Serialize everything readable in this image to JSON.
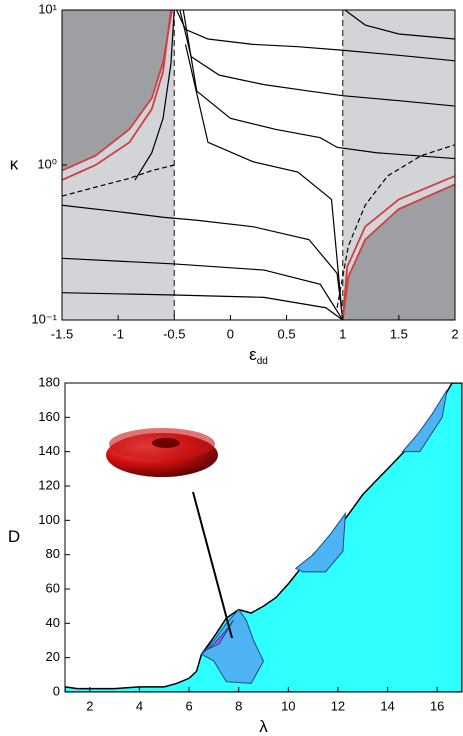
{
  "chart_data": [
    {
      "type": "line",
      "ylog": true,
      "xlabel": "ε",
      "xlabel_sub": "dd",
      "ylabel": "κ",
      "xlim": [
        -1.5,
        2
      ],
      "ylim": [
        0.1,
        10
      ],
      "xticks": [
        -1.5,
        -1,
        -0.5,
        0,
        0.5,
        1,
        1.5,
        2
      ],
      "yticks": [
        {
          "value": 0.1,
          "label": "10⁻¹"
        },
        {
          "value": 1,
          "label": "10⁰"
        },
        {
          "value": 10,
          "label": "10¹"
        }
      ],
      "vlines": [
        -0.5,
        1
      ],
      "shade_color": "#d3d4d8",
      "dark_color": "#9e9fa3",
      "series": [
        {
          "color": "#9e9fa3",
          "fill_to": "top",
          "x": [
            -1.5,
            -1.2,
            -0.9,
            -0.7,
            -0.6,
            -0.52
          ],
          "values": [
            0.92,
            1.15,
            1.7,
            2.7,
            4.6,
            10
          ]
        },
        {
          "color": "#9e9fa3",
          "fill_to": "bottom",
          "x": [
            1.0,
            1.05,
            1.2,
            1.5,
            2
          ],
          "values": [
            0.1,
            0.19,
            0.33,
            0.52,
            0.75
          ]
        },
        {
          "color": "#000000",
          "dash": true,
          "x": [
            -1.5,
            -1.2,
            -0.9,
            -0.7,
            -0.5
          ],
          "values": [
            0.63,
            0.72,
            0.82,
            0.92,
            1.0
          ]
        },
        {
          "color": "#000000",
          "dash": true,
          "x": [
            0.95,
            1.05,
            1.2,
            1.4,
            1.7,
            2
          ],
          "values": [
            0.12,
            0.3,
            0.55,
            0.85,
            1.15,
            1.35
          ]
        },
        {
          "color": "#000000",
          "x": [
            -0.48,
            -0.4,
            -0.2,
            0.2,
            0.6,
            1,
            1.5,
            2
          ],
          "values": [
            10,
            7.5,
            6.5,
            6,
            5.8,
            5.5,
            5.1,
            4.7
          ]
        },
        {
          "color": "#000000",
          "x": [
            -0.45,
            -0.35,
            -0.1,
            0.3,
            0.7,
            1,
            1.5,
            2
          ],
          "values": [
            10,
            5,
            3.8,
            3.3,
            3,
            2.8,
            2.6,
            2.4
          ]
        },
        {
          "color": "#000000",
          "x": [
            -0.42,
            -0.3,
            0,
            0.4,
            0.8,
            0.95,
            1.3,
            2
          ],
          "values": [
            10,
            3,
            2,
            1.7,
            1.5,
            1.3,
            1.2,
            1.1
          ]
        },
        {
          "color": "#000000",
          "x": [
            -0.4,
            -0.2,
            0.2,
            0.6,
            0.9,
            0.99
          ],
          "values": [
            6,
            1.4,
            1.05,
            0.9,
            0.6,
            0.12
          ]
        },
        {
          "color": "#000000",
          "x": [
            -1.5,
            -1,
            -0.6,
            -0.3,
            0.2,
            0.7,
            0.95,
            1
          ],
          "values": [
            0.55,
            0.5,
            0.46,
            0.44,
            0.4,
            0.33,
            0.2,
            0.1
          ]
        },
        {
          "color": "#000000",
          "x": [
            -1.5,
            -0.5,
            0.3,
            0.8,
            1
          ],
          "values": [
            0.25,
            0.23,
            0.21,
            0.17,
            0.1
          ]
        },
        {
          "color": "#000000",
          "x": [
            -1.5,
            -0.5,
            0.3,
            0.85,
            1
          ],
          "values": [
            0.15,
            0.145,
            0.14,
            0.12,
            0.1
          ]
        },
        {
          "color": "#000000",
          "x": [
            -0.85,
            -0.7,
            -0.6,
            -0.53,
            -0.5
          ],
          "values": [
            0.8,
            1.2,
            2,
            4.5,
            10
          ]
        },
        {
          "color": "#000000",
          "x": [
            1.02,
            1.2,
            1.5,
            2
          ],
          "values": [
            10,
            8,
            7,
            6.5
          ]
        },
        {
          "color": "#d04040",
          "x": [
            -1.5,
            -1.2,
            -0.9,
            -0.7,
            -0.6,
            -0.52
          ],
          "values": [
            0.92,
            1.15,
            1.7,
            2.7,
            4.6,
            10
          ]
        },
        {
          "color": "#d04040",
          "x": [
            -1.5,
            -1.2,
            -0.9,
            -0.7,
            -0.6,
            -0.53
          ],
          "values": [
            0.8,
            1.0,
            1.4,
            2.3,
            4,
            10
          ]
        },
        {
          "color": "#d04040",
          "x": [
            1.0,
            1.05,
            1.2,
            1.5,
            2
          ],
          "values": [
            0.1,
            0.19,
            0.33,
            0.52,
            0.75
          ]
        },
        {
          "color": "#d04040",
          "x": [
            1.0,
            1.04,
            1.2,
            1.5,
            2
          ],
          "values": [
            0.1,
            0.22,
            0.4,
            0.6,
            0.85
          ]
        }
      ]
    },
    {
      "type": "area",
      "xlabel": "λ",
      "ylabel": "D",
      "xlim": [
        1,
        17
      ],
      "ylim": [
        0,
        180
      ],
      "xticks": [
        2,
        4,
        6,
        8,
        10,
        12,
        14,
        16
      ],
      "yticks": [
        0,
        20,
        40,
        60,
        80,
        100,
        120,
        140,
        160,
        180
      ],
      "series": [
        {
          "color": "#2effff",
          "fill_to": "bottom",
          "border": true,
          "x": [
            1,
            1.5,
            2,
            3,
            4,
            5,
            5.5,
            6,
            6.3,
            6.5,
            7,
            7.5,
            8,
            8.5,
            9,
            9.5,
            10,
            10.5,
            11,
            12,
            13,
            14,
            15,
            16,
            16.6,
            17
          ],
          "values": [
            3,
            2,
            2,
            2,
            3,
            3,
            5,
            8,
            12,
            22,
            32,
            43,
            48,
            46,
            50,
            55,
            63,
            72,
            80,
            95,
            115,
            130,
            145,
            165,
            180,
            180
          ]
        },
        {
          "color": "#4db3f2",
          "border": true,
          "closed": true,
          "x": [
            6.5,
            7,
            7.5,
            8,
            8.3,
            8.6,
            9,
            8.5,
            7.5,
            7,
            6.5
          ],
          "values": [
            22,
            30,
            40,
            48,
            42,
            30,
            18,
            5,
            6,
            18,
            22
          ]
        },
        {
          "color": "#4db3f2",
          "border": true,
          "closed": true,
          "x": [
            10.3,
            11,
            11.7,
            12.3,
            12.2,
            11.5,
            10.6,
            10.3
          ],
          "values": [
            72,
            80,
            92,
            104,
            82,
            70,
            70,
            72
          ]
        },
        {
          "color": "#4db3f2",
          "border": true,
          "closed": true,
          "x": [
            14.6,
            15.2,
            15.8,
            16.4,
            16.2,
            15.3,
            14.6
          ],
          "values": [
            140,
            150,
            162,
            176,
            160,
            140,
            140
          ]
        },
        {
          "color": "#b05cf0",
          "border": true,
          "closed": true,
          "x": [
            6.5,
            7,
            7.5,
            7.8,
            7.2,
            6.6,
            6.5
          ],
          "values": [
            22,
            28,
            36,
            42,
            28,
            24,
            22
          ]
        }
      ]
    }
  ]
}
